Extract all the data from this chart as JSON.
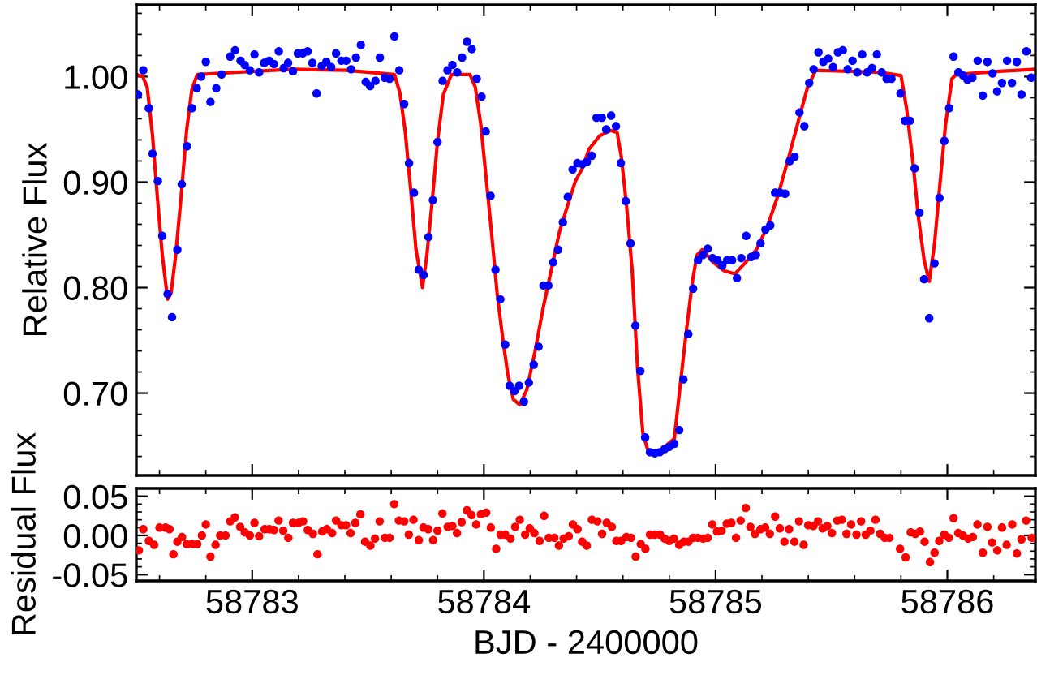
{
  "chart_data": [
    {
      "type": "scatter",
      "ylabel": "Relative Flux",
      "tick_labels": "y",
      "marker": "circle",
      "xlim": [
        58782.5,
        58786.38
      ],
      "xticks": [
        {
          "value": 58783,
          "label": null
        },
        {
          "value": 58784,
          "label": null
        },
        {
          "value": 58785,
          "label": null
        },
        {
          "value": 58786,
          "label": null
        }
      ],
      "ylim": [
        0.622,
        1.068
      ],
      "yticks": [
        {
          "value": 0.7,
          "label": "0.70"
        },
        {
          "value": 0.8,
          "label": "0.80"
        },
        {
          "value": 0.9,
          "label": "0.90"
        },
        {
          "value": 1.0,
          "label": "1.00"
        }
      ],
      "series": [
        {
          "color": "#0000ff",
          "x": [
            58782.507,
            58782.53,
            58782.554,
            58782.57,
            58782.593,
            58782.612,
            58782.635,
            58782.654,
            58782.677,
            58782.696,
            58782.719,
            58782.74,
            58782.761,
            58782.78,
            58782.8,
            58782.82,
            58782.845,
            58782.868,
            58782.905,
            58782.926,
            58782.95,
            58782.968,
            58782.99,
            58783.01,
            58783.03,
            58783.052,
            58783.073,
            58783.094,
            58783.115,
            58783.136,
            58783.155,
            58783.176,
            58783.197,
            58783.218,
            58783.239,
            58783.26,
            58783.278,
            58783.3,
            58783.32,
            58783.341,
            58783.362,
            58783.385,
            58783.406,
            58783.427,
            58783.448,
            58783.469,
            58783.49,
            58783.509,
            58783.532,
            58783.551,
            58783.572,
            58783.593,
            58783.614,
            58783.635,
            58783.656,
            58783.677,
            58783.698,
            58783.719,
            58783.74,
            58783.761,
            58783.78,
            58783.8,
            58783.822,
            58783.843,
            58783.864,
            58783.885,
            58783.906,
            58783.927,
            58783.948,
            58783.969,
            58783.99,
            58784.008,
            58784.029,
            58784.05,
            58784.071,
            58784.092,
            58784.111,
            58784.132,
            58784.152,
            58784.173,
            58784.194,
            58784.215,
            58784.236,
            58784.257,
            58784.278,
            58784.299,
            58784.32,
            58784.341,
            58784.362,
            58784.383,
            58784.404,
            58784.425,
            58784.444,
            58784.465,
            58784.486,
            58784.509,
            58784.528,
            58784.549,
            58784.57,
            58784.591,
            58784.612,
            58784.633,
            58784.654,
            58784.675,
            58784.696,
            58784.717,
            58784.738,
            58784.759,
            58784.78,
            58784.8,
            58784.822,
            58784.843,
            58784.861,
            58784.882,
            58784.903,
            58784.924,
            58784.945,
            58784.966,
            58784.987,
            58785.008,
            58785.029,
            58785.05,
            58785.071,
            58785.092,
            58785.111,
            58785.132,
            58785.153,
            58785.174,
            58785.194,
            58785.215,
            58785.236,
            58785.257,
            58785.278,
            58785.3,
            58785.32,
            58785.341,
            58785.362,
            58785.383,
            58785.404,
            58785.423,
            58785.444,
            58785.465,
            58785.486,
            58785.507,
            58785.528,
            58785.549,
            58785.57,
            58785.591,
            58785.612,
            58785.633,
            58785.654,
            58785.675,
            58785.696,
            58785.717,
            58785.738,
            58785.759,
            58785.798,
            58785.817,
            58785.838,
            58785.859,
            58785.88,
            58785.9,
            58785.922,
            58785.945,
            58785.966,
            58785.987,
            58786.008,
            58786.027,
            58786.048,
            58786.069,
            58786.087,
            58786.108,
            58786.131,
            58786.153,
            58786.173,
            58786.195,
            58786.215,
            58786.236,
            58786.258,
            58786.279,
            58786.3,
            58786.32,
            58786.341,
            58786.362
          ],
          "values": [
            0.983,
            1.006,
            0.97,
            0.927,
            0.901,
            0.849,
            0.794,
            0.772,
            0.836,
            0.898,
            0.934,
            0.97,
            0.989,
            1.0,
            1.014,
            0.976,
            0.989,
            1.002,
            1.019,
            1.025,
            1.015,
            1.011,
            1.006,
            1.021,
            1.004,
            1.013,
            1.015,
            1.012,
            1.024,
            1.008,
            1.013,
            1.005,
            1.022,
            1.022,
            1.024,
            1.013,
            0.984,
            1.01,
            1.014,
            1.009,
            1.022,
            1.015,
            1.015,
            1.007,
            1.018,
            1.03,
            0.995,
            0.991,
            0.996,
            1.018,
            0.999,
            0.998,
            1.038,
            1.006,
            0.974,
            0.918,
            0.89,
            0.817,
            0.812,
            0.848,
            0.883,
            0.938,
            0.996,
            1.006,
            1.011,
            1.004,
            1.018,
            1.033,
            1.026,
            0.998,
            0.981,
            0.948,
            0.887,
            0.817,
            0.789,
            0.746,
            0.707,
            0.702,
            0.707,
            0.692,
            0.71,
            0.727,
            0.744,
            0.802,
            0.802,
            0.824,
            0.836,
            0.862,
            0.886,
            0.912,
            0.918,
            0.917,
            0.919,
            0.925,
            0.961,
            0.961,
            0.95,
            0.963,
            0.953,
            0.918,
            0.882,
            0.842,
            0.764,
            0.721,
            0.658,
            0.644,
            0.643,
            0.644,
            0.647,
            0.649,
            0.652,
            0.665,
            0.713,
            0.756,
            0.799,
            0.826,
            0.831,
            0.837,
            0.828,
            0.826,
            0.821,
            0.826,
            0.826,
            0.809,
            0.828,
            0.849,
            0.829,
            0.831,
            0.842,
            0.855,
            0.859,
            0.89,
            0.89,
            0.889,
            0.92,
            0.924,
            0.966,
            0.953,
            0.994,
            1.007,
            1.023,
            1.014,
            1.017,
            1.009,
            1.023,
            1.025,
            1.007,
            1.015,
            1.004,
            1.021,
            1.004,
            1.008,
            1.021,
            1.004,
            0.998,
            0.998,
            0.984,
            0.958,
            0.958,
            0.913,
            0.871,
            0.808,
            0.771,
            0.823,
            0.885,
            0.939,
            0.97,
            1.019,
            1.004,
            1.001,
            0.997,
            0.999,
            1.015,
            0.982,
            1.014,
            1.003,
            0.986,
            0.994,
            1.015,
            0.994,
            1.014,
            0.983,
            1.024,
            0.999
          ]
        },
        {
          "type": "line",
          "color": "#ff0000",
          "marker": "none",
          "line_style": "solid",
          "x": [
            58782.5,
            58782.528,
            58782.547,
            58782.57,
            58782.59,
            58782.612,
            58782.635,
            58782.65,
            58782.67,
            58782.694,
            58782.717,
            58782.74,
            58782.763,
            58783.17,
            58783.404,
            58783.614,
            58783.637,
            58783.66,
            58783.684,
            58783.707,
            58783.735,
            58783.754,
            58783.777,
            58783.8,
            58783.825,
            58783.86,
            58783.94,
            58783.963,
            58783.987,
            58784.01,
            58784.033,
            58784.057,
            58784.08,
            58784.103,
            58784.127,
            58784.155,
            58784.185,
            58784.22,
            58784.255,
            58784.29,
            58784.325,
            58784.36,
            58784.395,
            58784.425,
            58784.453,
            58784.5,
            58784.547,
            58784.575,
            58784.593,
            58784.616,
            58784.64,
            58784.663,
            58784.686,
            58784.71,
            58784.733,
            58784.78,
            58784.822,
            58784.85,
            58784.877,
            58784.9,
            58784.92,
            58784.943,
            58784.99,
            58785.036,
            58785.083,
            58785.13,
            58785.176,
            58785.222,
            58785.27,
            58785.316,
            58785.362,
            58785.397,
            58785.432,
            58785.572,
            58785.712,
            58785.8,
            58785.824,
            58785.852,
            58785.875,
            58785.9,
            58785.922,
            58785.945,
            58785.968,
            58785.992,
            58786.02,
            58786.038,
            58786.225,
            58786.38
          ],
          "values": [
            1.002,
            1.0,
            0.99,
            0.944,
            0.888,
            0.831,
            0.789,
            0.795,
            0.831,
            0.888,
            0.949,
            0.988,
            1.002,
            1.007,
            1.006,
            1.002,
            0.985,
            0.949,
            0.893,
            0.836,
            0.8,
            0.831,
            0.882,
            0.939,
            0.983,
            1.002,
            1.002,
            0.99,
            0.954,
            0.903,
            0.852,
            0.795,
            0.754,
            0.718,
            0.694,
            0.689,
            0.703,
            0.739,
            0.78,
            0.816,
            0.852,
            0.877,
            0.901,
            0.913,
            0.931,
            0.944,
            0.949,
            0.947,
            0.924,
            0.877,
            0.816,
            0.724,
            0.662,
            0.644,
            0.641,
            0.649,
            0.657,
            0.713,
            0.765,
            0.806,
            0.831,
            0.836,
            0.824,
            0.816,
            0.813,
            0.824,
            0.836,
            0.857,
            0.888,
            0.924,
            0.962,
            0.99,
            1.006,
            1.005,
            1.004,
            1.001,
            0.97,
            0.918,
            0.867,
            0.826,
            0.806,
            0.842,
            0.898,
            0.954,
            0.998,
            1.002,
            1.005,
            1.007
          ]
        }
      ]
    },
    {
      "type": "scatter",
      "xlabel": "BJD - 2400000",
      "ylabel": "Residual Flux",
      "marker": "circle",
      "xlim": [
        58782.5,
        58786.38
      ],
      "xticks": [
        58783,
        58784,
        58785,
        58786
      ],
      "ylim": [
        -0.058,
        0.06
      ],
      "yticks": [
        {
          "value": -0.05,
          "label": "-0.05"
        },
        {
          "value": 0.0,
          "label": "0.00"
        },
        {
          "value": 0.05,
          "label": "0.05"
        }
      ],
      "series": [
        {
          "color": "#ff0000",
          "x": [
            58782.511,
            58782.53,
            58782.554,
            58782.577,
            58782.6,
            58782.626,
            58782.643,
            58782.66,
            58782.677,
            58782.697,
            58782.717,
            58782.74,
            58782.763,
            58782.783,
            58782.8,
            58782.82,
            58782.842,
            58782.862,
            58782.885,
            58782.905,
            58782.925,
            58782.948,
            58782.968,
            58782.99,
            58783.01,
            58783.03,
            58783.054,
            58783.074,
            58783.094,
            58783.114,
            58783.134,
            58783.156,
            58783.176,
            58783.2,
            58783.22,
            58783.24,
            58783.262,
            58783.282,
            58783.302,
            58783.322,
            58783.345,
            58783.362,
            58783.385,
            58783.405,
            58783.425,
            58783.445,
            58783.467,
            58783.487,
            58783.51,
            58783.53,
            58783.55,
            58783.573,
            58783.593,
            58783.613,
            58783.633,
            58783.656,
            58783.676,
            58783.696,
            58783.719,
            58783.739,
            58783.76,
            58783.781,
            58783.8,
            58783.821,
            58783.844,
            58783.864,
            58783.884,
            58783.904,
            58783.927,
            58783.947,
            58783.967,
            58783.987,
            58784.01,
            58784.03,
            58784.053,
            58784.072,
            58784.092,
            58784.115,
            58784.135,
            58784.155,
            58784.178,
            58784.198,
            58784.218,
            58784.24,
            58784.26,
            58784.28,
            58784.304,
            58784.324,
            58784.344,
            58784.366,
            58784.384,
            58784.404,
            58784.424,
            58784.444,
            58784.466,
            58784.49,
            58784.51,
            58784.53,
            58784.552,
            58784.572,
            58784.592,
            58784.615,
            58784.635,
            58784.655,
            58784.677,
            58784.697,
            58784.717,
            58784.737,
            58784.76,
            58784.78,
            58784.8,
            58784.82,
            58784.843,
            58784.863,
            58784.883,
            58784.903,
            58784.923,
            58784.946,
            58784.966,
            58784.986,
            58785.006,
            58785.026,
            58785.048,
            58785.068,
            58785.088,
            58785.108,
            58785.13,
            58785.15,
            58785.17,
            58785.194,
            58785.214,
            58785.234,
            58785.257,
            58785.277,
            58785.297,
            58785.317,
            58785.34,
            58785.36,
            58785.38,
            58785.4,
            58785.422,
            58785.442,
            58785.462,
            58785.482,
            58785.502,
            58785.525,
            58785.545,
            58785.565,
            58785.585,
            58785.608,
            58785.628,
            58785.648,
            58785.668,
            58785.69,
            58785.71,
            58785.73,
            58785.75,
            58785.796,
            58785.82,
            58785.842,
            58785.862,
            58785.882,
            58785.902,
            58785.925,
            58785.945,
            58785.965,
            58785.987,
            58786.007,
            58786.027,
            58786.047,
            58786.067,
            58786.09,
            58786.11,
            58786.13,
            58786.153,
            58786.173,
            58786.193,
            58786.216,
            58786.236,
            58786.256,
            58786.28,
            58786.3,
            58786.32,
            58786.34,
            58786.364
          ],
          "values": [
            -0.019,
            0.008,
            -0.007,
            -0.012,
            0.01,
            0.01,
            0.008,
            -0.024,
            -0.008,
            -0.002,
            -0.011,
            -0.011,
            -0.011,
            0.0,
            0.014,
            -0.027,
            -0.012,
            0.0,
            0.0,
            0.018,
            0.023,
            0.011,
            0.004,
            0.0,
            0.016,
            -0.001,
            0.008,
            0.008,
            0.007,
            0.019,
            0.006,
            -0.003,
            0.016,
            0.016,
            0.018,
            0.007,
            0.002,
            -0.024,
            0.005,
            0.008,
            0.003,
            0.019,
            0.013,
            0.013,
            0.003,
            0.016,
            0.027,
            -0.008,
            -0.013,
            -0.004,
            0.018,
            -0.003,
            -0.003,
            0.04,
            0.019,
            0.018,
            0.001,
            0.02,
            -0.006,
            0.01,
            0.008,
            -0.006,
            0.006,
            0.028,
            0.011,
            0.012,
            0.003,
            0.017,
            0.032,
            0.026,
            0.014,
            0.027,
            0.029,
            0.01,
            -0.017,
            0.001,
            0.001,
            -0.004,
            0.011,
            0.02,
            0.001,
            0.009,
            0.003,
            -0.007,
            0.025,
            -0.003,
            -0.003,
            -0.013,
            -0.004,
            -0.001,
            0.014,
            0.008,
            -0.008,
            -0.013,
            0.02,
            0.018,
            0.002,
            0.016,
            0.011,
            -0.007,
            -0.007,
            -0.002,
            -0.003,
            -0.027,
            -0.011,
            -0.017,
            0.001,
            0.001,
            0.001,
            -0.004,
            -0.007,
            -0.004,
            -0.012,
            -0.008,
            -0.008,
            -0.003,
            -0.003,
            -0.004,
            -0.003,
            0.014,
            0.005,
            0.006,
            0.015,
            0.016,
            -0.003,
            0.019,
            0.035,
            0.011,
            0.002,
            0.008,
            0.01,
            0.002,
            0.024,
            0.009,
            -0.008,
            0.008,
            -0.008,
            0.018,
            -0.012,
            0.013,
            0.012,
            0.018,
            0.009,
            0.012,
            0.003,
            0.019,
            0.02,
            0.002,
            0.014,
            0.001,
            0.018,
            0.001,
            0.006,
            0.02,
            0.002,
            -0.003,
            -0.003,
            -0.017,
            -0.028,
            0.004,
            0.002,
            0.005,
            -0.008,
            -0.034,
            -0.022,
            -0.007,
            0.001,
            -0.003,
            0.022,
            0.003,
            0.0,
            -0.004,
            -0.002,
            0.014,
            -0.022,
            0.011,
            -0.009,
            -0.019,
            0.01,
            -0.012,
            0.014,
            -0.023,
            -0.005,
            0.019,
            -0.003
          ]
        }
      ]
    }
  ]
}
